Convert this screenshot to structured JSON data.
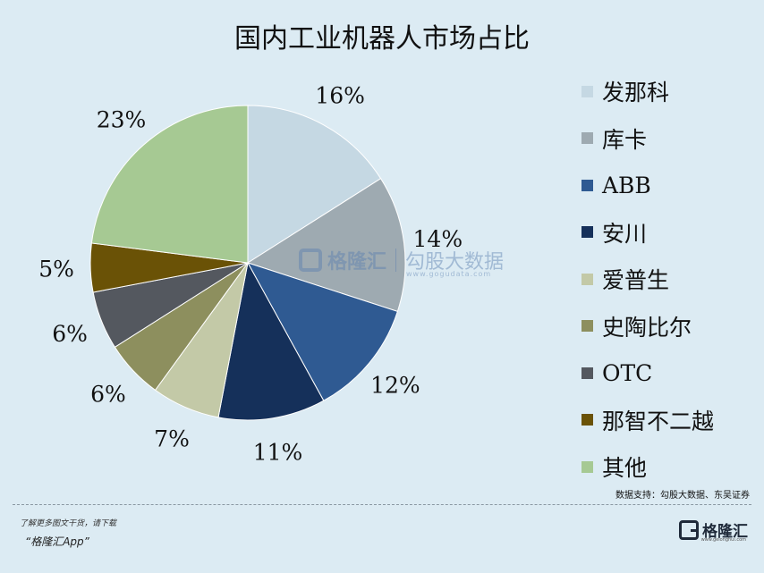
{
  "title": "国内工业机器人市场占比",
  "chart_data": {
    "type": "pie",
    "title": "国内工业机器人市场占比",
    "slices": [
      {
        "label": "发那科",
        "value": 16,
        "display": "16%",
        "color": "#c5d8e3"
      },
      {
        "label": "库卡",
        "value": 14,
        "display": "14%",
        "color": "#9eaab1"
      },
      {
        "label": "ABB",
        "value": 12,
        "display": "12%",
        "color": "#2f5a92"
      },
      {
        "label": "安川",
        "value": 11,
        "display": "11%",
        "color": "#15305a"
      },
      {
        "label": "爱普生",
        "value": 7,
        "display": "7%",
        "color": "#c3c9a7"
      },
      {
        "label": "史陶比尔",
        "value": 6,
        "display": "6%",
        "color": "#8d8f5e"
      },
      {
        "label": "OTC",
        "value": 6,
        "display": "6%",
        "color": "#54585f"
      },
      {
        "label": "那智不二越",
        "value": 5,
        "display": "5%",
        "color": "#6a5206"
      },
      {
        "label": "其他",
        "value": 23,
        "display": "23%",
        "color": "#a6c993"
      }
    ],
    "legend_position": "right"
  },
  "source": "数据支持：勾股大数据、东吴证券",
  "footer": {
    "line1": "了解更多图文干货，请下载",
    "line2": "“格隆汇App”"
  },
  "brand": {
    "name": "格隆汇",
    "sub": "www.gelonghui.com"
  },
  "watermark": {
    "name": "格隆汇",
    "name2": "勾股大数据",
    "url": "www.gogudata.com"
  }
}
